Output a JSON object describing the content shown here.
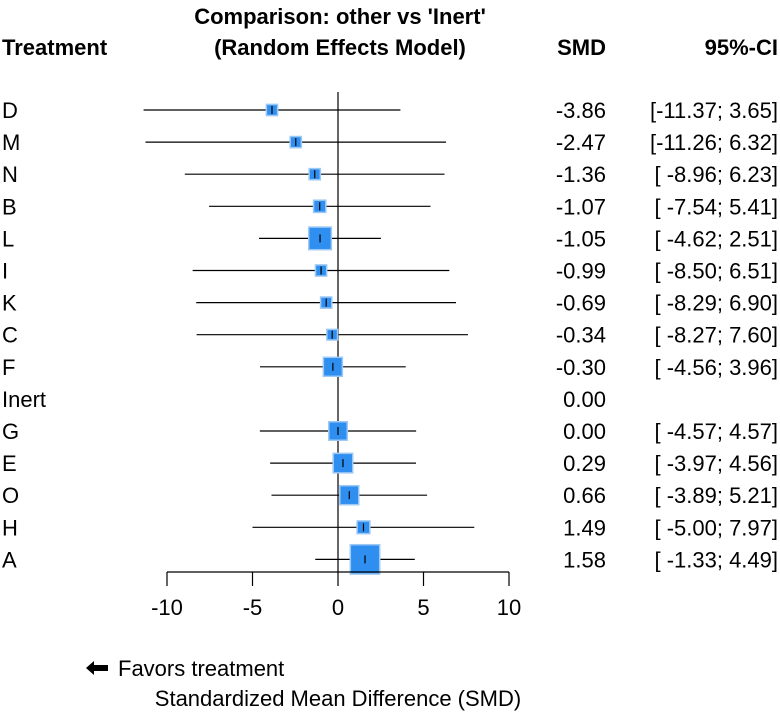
{
  "chart_data": {
    "type": "forest",
    "title_line1": "Comparison: other vs 'Inert'",
    "title_line2": "(Random Effects Model)",
    "col_treatment": "Treatment",
    "col_smd": "SMD",
    "col_ci": "95%-CI",
    "xlabel": "Standardized Mean Difference (SMD)",
    "favors_label": "Favors treatment",
    "xlim": [
      -10,
      10
    ],
    "ticks": [
      -10,
      -5,
      0,
      5,
      10
    ],
    "tick_labels": [
      "-10",
      "-5",
      "0",
      "5",
      "10"
    ],
    "rows": [
      {
        "name": "D",
        "smd": -3.86,
        "lower": -11.37,
        "upper": 3.65,
        "weight": 1,
        "smd_text": "-3.86",
        "ci_text": "[-11.37; 3.65]"
      },
      {
        "name": "M",
        "smd": -2.47,
        "lower": -11.26,
        "upper": 6.32,
        "weight": 1,
        "smd_text": "-2.47",
        "ci_text": "[-11.26; 6.32]"
      },
      {
        "name": "N",
        "smd": -1.36,
        "lower": -8.96,
        "upper": 6.23,
        "weight": 1,
        "smd_text": "-1.36",
        "ci_text": "[ -8.96; 6.23]"
      },
      {
        "name": "B",
        "smd": -1.07,
        "lower": -7.54,
        "upper": 5.41,
        "weight": 1.2,
        "smd_text": "-1.07",
        "ci_text": "[ -7.54; 5.41]"
      },
      {
        "name": "L",
        "smd": -1.05,
        "lower": -4.62,
        "upper": 2.51,
        "weight": 3.2,
        "smd_text": "-1.05",
        "ci_text": "[ -4.62; 2.51]"
      },
      {
        "name": "I",
        "smd": -0.99,
        "lower": -8.5,
        "upper": 6.51,
        "weight": 1,
        "smd_text": "-0.99",
        "ci_text": "[ -8.50; 6.51]"
      },
      {
        "name": "K",
        "smd": -0.69,
        "lower": -8.29,
        "upper": 6.9,
        "weight": 1,
        "smd_text": "-0.69",
        "ci_text": "[ -8.29; 6.90]"
      },
      {
        "name": "C",
        "smd": -0.34,
        "lower": -8.27,
        "upper": 7.6,
        "weight": 0.9,
        "smd_text": "-0.34",
        "ci_text": "[ -8.27; 7.60]"
      },
      {
        "name": "F",
        "smd": -0.3,
        "lower": -4.56,
        "upper": 3.96,
        "weight": 2.5,
        "smd_text": "-0.30",
        "ci_text": "[ -4.56; 3.96]"
      },
      {
        "name": "Inert",
        "smd": null,
        "lower": null,
        "upper": null,
        "weight": 0,
        "smd_text": "0.00",
        "ci_text": ""
      },
      {
        "name": "G",
        "smd": 0.0,
        "lower": -4.57,
        "upper": 4.57,
        "weight": 2.4,
        "smd_text": "0.00",
        "ci_text": "[ -4.57; 4.57]"
      },
      {
        "name": "E",
        "smd": 0.29,
        "lower": -3.97,
        "upper": 4.56,
        "weight": 2.6,
        "smd_text": "0.29",
        "ci_text": "[ -3.97; 4.56]"
      },
      {
        "name": "O",
        "smd": 0.66,
        "lower": -3.89,
        "upper": 5.21,
        "weight": 2.5,
        "smd_text": "0.66",
        "ci_text": "[ -3.89; 5.21]"
      },
      {
        "name": "H",
        "smd": 1.49,
        "lower": -5.0,
        "upper": 7.97,
        "weight": 1.3,
        "smd_text": "1.49",
        "ci_text": "[ -5.00; 7.97]"
      },
      {
        "name": "A",
        "smd": 1.58,
        "lower": -1.33,
        "upper": 4.49,
        "weight": 4.5,
        "smd_text": "1.58",
        "ci_text": "[ -1.33; 4.49]"
      }
    ],
    "colors": {
      "box": "#2f8ff0",
      "box_border": "#9ec9f5",
      "line": "#000000"
    }
  }
}
